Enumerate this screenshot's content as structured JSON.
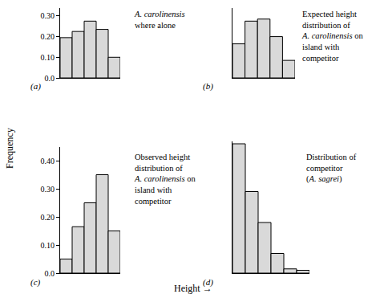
{
  "ylabel": "Frequency",
  "xlabel": "Height →",
  "chart_data": [
    {
      "type": "bar",
      "annotations": [
        "(a)"
      ],
      "title": [
        "A. carolinensis",
        "where alone"
      ],
      "categories": [
        null,
        null,
        null,
        null,
        null
      ],
      "values": [
        0.195,
        0.225,
        0.275,
        0.235,
        0.1
      ],
      "color": "#d9d9d9",
      "ylim": [
        0,
        0.34
      ],
      "yticks": [
        {
          "value": 0,
          "label": "0.0"
        },
        {
          "value": 0.1,
          "label": "0.10"
        },
        {
          "value": 0.2,
          "label": "0.20"
        },
        {
          "value": 0.3,
          "label": "0.30"
        }
      ],
      "tick_labels": "y"
    },
    {
      "type": "bar",
      "annotations": [
        "(b)"
      ],
      "title": [
        "Expected height",
        "distribution of",
        "A. carolinensis on",
        "island with",
        "competitor"
      ],
      "categories": [
        null,
        null,
        null,
        null,
        null
      ],
      "values": [
        0.165,
        0.275,
        0.285,
        0.2,
        0.085
      ],
      "color": "#d9d9d9",
      "ylim": [
        0,
        0.34
      ],
      "tick_labels": false
    },
    {
      "type": "bar",
      "annotations": [
        "(c)"
      ],
      "title": [
        "Observed height",
        "distribution of",
        "A. carolinensis on",
        "island with",
        "competitor"
      ],
      "categories": [
        null,
        null,
        null,
        null,
        null
      ],
      "values": [
        0.05,
        0.165,
        0.25,
        0.35,
        0.15
      ],
      "color": "#d9d9d9",
      "ylim": [
        0,
        0.45
      ],
      "yticks": [
        {
          "value": 0,
          "label": "0.0"
        },
        {
          "value": 0.1,
          "label": "0.10"
        },
        {
          "value": 0.2,
          "label": "0.20"
        },
        {
          "value": 0.3,
          "label": "0.30"
        },
        {
          "value": 0.4,
          "label": "0.40"
        }
      ],
      "tick_labels": "y"
    },
    {
      "type": "bar",
      "annotations": [
        "(d)"
      ],
      "title": [
        "Distribution of",
        "competitor",
        "(A. sagrei)"
      ],
      "categories": [
        null,
        null,
        null,
        null,
        null,
        null
      ],
      "values": [
        0.46,
        0.29,
        0.18,
        0.07,
        0.015,
        0.01
      ],
      "color": "#d9d9d9",
      "ylim": [
        0,
        0.47
      ],
      "tick_labels": false
    }
  ]
}
